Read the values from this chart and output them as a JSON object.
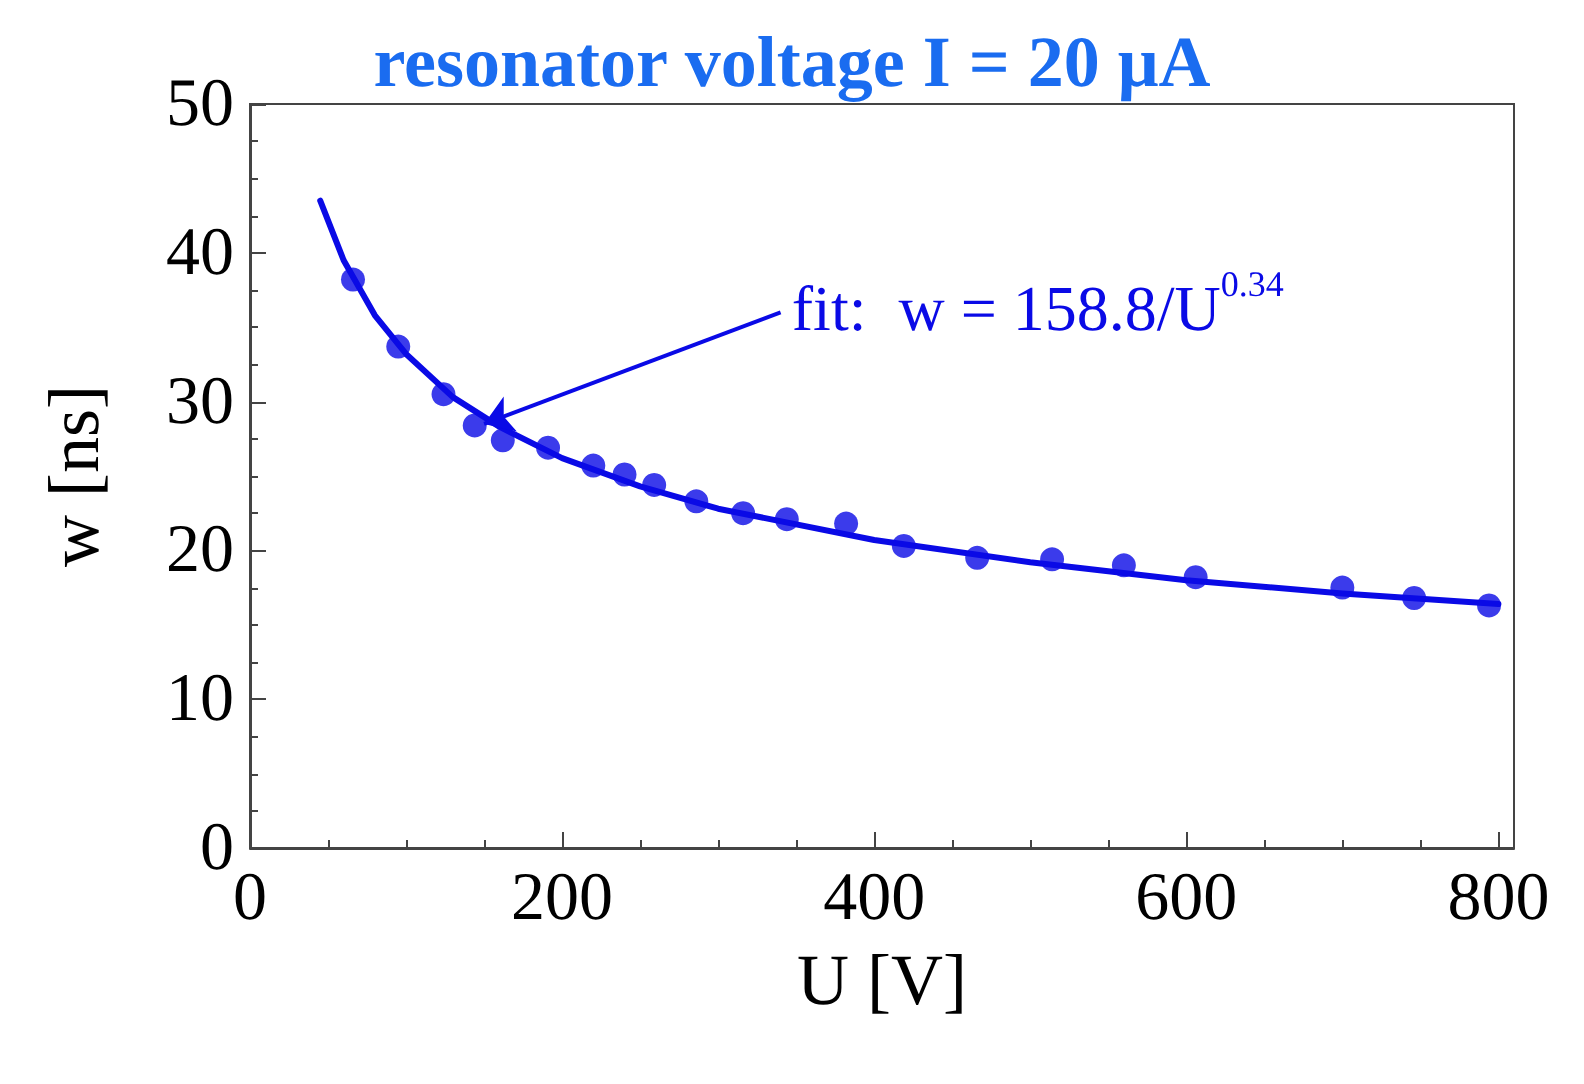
{
  "chart_data": {
    "type": "scatter",
    "title": "resonator voltage I = 20 μA",
    "xlabel": "U [V]",
    "ylabel": "w [ns]",
    "xlim": [
      0,
      810
    ],
    "xticks": [
      0,
      200,
      400,
      600,
      800
    ],
    "ylim": [
      0,
      50
    ],
    "yticks": [
      0,
      10,
      20,
      30,
      40,
      50
    ],
    "grid": false,
    "series": [
      {
        "marker": "circle",
        "color": "#0a0ae6",
        "x": [
          66,
          95,
          124,
          144,
          162,
          191,
          220,
          240,
          259,
          286,
          316,
          344,
          382,
          419,
          466,
          514,
          560,
          606,
          700,
          746,
          794
        ],
        "values": [
          38.2,
          33.7,
          30.5,
          28.4,
          27.4,
          26.9,
          25.7,
          25.1,
          24.4,
          23.3,
          22.5,
          22.1,
          21.8,
          20.3,
          19.5,
          19.4,
          19.0,
          18.2,
          17.5,
          16.8,
          16.3
        ]
      },
      {
        "type": "line",
        "marker": "none",
        "line_style": "solid",
        "color": "#0a0ae6",
        "x": [
          45,
          60,
          80,
          100,
          130,
          160,
          200,
          250,
          300,
          400,
          500,
          600,
          700,
          800
        ],
        "values": [
          43.5,
          39.5,
          35.8,
          33.2,
          30.3,
          28.3,
          26.2,
          24.3,
          22.8,
          20.7,
          19.2,
          18.0,
          17.1,
          16.4
        ]
      }
    ],
    "annotations": [
      {
        "text": "fit:  w = 158.8/U$^{0.34}$",
        "x": 150,
        "y": 28.5
      }
    ]
  }
}
